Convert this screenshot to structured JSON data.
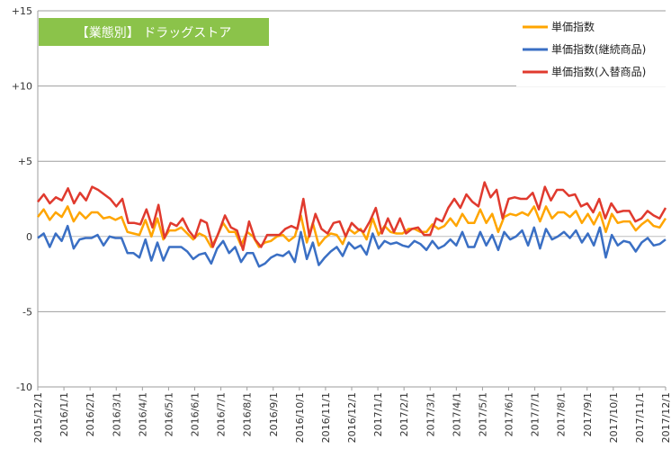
{
  "chart_data": {
    "type": "line",
    "title": "【業態別】 ドラッグストア",
    "title_bg": "#8BC34A",
    "xlabel": "",
    "ylabel": "",
    "ylim": [
      -10,
      15
    ],
    "y_ticks": [
      -10,
      -5,
      0,
      5,
      10,
      15
    ],
    "y_tick_labels": [
      "-10",
      "-5",
      "0",
      "+5",
      "+10",
      "+15"
    ],
    "x_tick_labels": [
      "2015/12/1",
      "2016/1/1",
      "2016/2/1",
      "2016/3/1",
      "2016/4/1",
      "2016/5/1",
      "2016/6/1",
      "2016/7/1",
      "2016/8/1",
      "2016/9/1",
      "2016/10/1",
      "2016/11/1",
      "2016/12/1",
      "2017/1/1",
      "2017/2/1",
      "2017/3/1",
      "2017/4/1",
      "2017/5/1",
      "2017/6/1",
      "2017/7/1",
      "2017/8/1",
      "2017/9/1",
      "2017/10/1",
      "2017/11/1",
      "2017/12/1"
    ],
    "grid": true,
    "legend_position": "top-right",
    "series": [
      {
        "name": "単価指数",
        "color": "#FFA500",
        "values": [
          1.3,
          1.8,
          1.1,
          1.6,
          1.3,
          2.0,
          1.0,
          1.6,
          1.2,
          1.6,
          1.6,
          1.2,
          1.3,
          1.1,
          1.3,
          0.3,
          0.2,
          0.1,
          1.1,
          0.0,
          1.2,
          -0.2,
          0.4,
          0.4,
          0.6,
          0.2,
          -0.2,
          0.2,
          0.0,
          -0.7,
          0.0,
          0.9,
          0.3,
          0.3,
          -0.6,
          0.3,
          0.0,
          -0.7,
          -0.4,
          -0.3,
          0.0,
          0.1,
          -0.3,
          0.0,
          1.4,
          -0.4,
          0.9,
          -0.6,
          -0.1,
          0.2,
          0.1,
          -0.5,
          0.5,
          0.2,
          0.5,
          -0.2,
          1.2,
          0.1,
          0.7,
          0.3,
          0.2,
          0.2,
          0.5,
          0.5,
          0.3,
          0.3,
          0.8,
          0.5,
          0.7,
          1.2,
          0.7,
          1.5,
          0.9,
          0.9,
          1.8,
          0.9,
          1.5,
          0.3,
          1.3,
          1.5,
          1.4,
          1.6,
          1.4,
          2.0,
          1.0,
          2.0,
          1.2,
          1.6,
          1.6,
          1.3,
          1.7,
          0.9,
          1.5,
          0.8,
          1.6,
          0.3,
          1.5,
          0.9,
          1.0,
          1.0,
          0.4,
          0.8,
          1.1,
          0.7,
          0.6,
          1.2
        ]
      },
      {
        "name": "単価指数(継続商品)",
        "color": "#3A6FC4",
        "values": [
          -0.1,
          0.2,
          -0.7,
          0.2,
          -0.3,
          0.7,
          -0.8,
          -0.2,
          -0.1,
          -0.1,
          0.1,
          -0.6,
          0.0,
          -0.1,
          -0.1,
          -1.1,
          -1.1,
          -1.4,
          -0.2,
          -1.6,
          -0.4,
          -1.6,
          -0.7,
          -0.7,
          -0.7,
          -1.0,
          -1.5,
          -1.2,
          -1.1,
          -1.8,
          -0.8,
          -0.3,
          -1.1,
          -0.7,
          -1.7,
          -1.1,
          -1.1,
          -2.0,
          -1.8,
          -1.4,
          -1.2,
          -1.3,
          -1.0,
          -1.7,
          0.3,
          -1.5,
          -0.4,
          -1.9,
          -1.4,
          -1.0,
          -0.7,
          -1.3,
          -0.4,
          -0.8,
          -0.6,
          -1.2,
          0.2,
          -0.8,
          -0.3,
          -0.5,
          -0.4,
          -0.6,
          -0.7,
          -0.3,
          -0.5,
          -0.9,
          -0.3,
          -0.8,
          -0.6,
          -0.2,
          -0.6,
          0.3,
          -0.7,
          -0.7,
          0.3,
          -0.6,
          0.1,
          -0.9,
          0.3,
          -0.2,
          0.0,
          0.4,
          -0.6,
          0.6,
          -0.8,
          0.5,
          -0.2,
          0.0,
          0.3,
          -0.1,
          0.4,
          -0.4,
          0.2,
          -0.6,
          0.6,
          -1.4,
          0.1,
          -0.6,
          -0.3,
          -0.4,
          -1.0,
          -0.4,
          -0.1,
          -0.6,
          -0.5,
          -0.2
        ]
      },
      {
        "name": "単価指数(入替商品)",
        "color": "#E03A2E",
        "values": [
          2.3,
          2.8,
          2.2,
          2.6,
          2.4,
          3.2,
          2.2,
          2.9,
          2.4,
          3.3,
          3.1,
          2.8,
          2.5,
          2.0,
          2.5,
          0.9,
          0.9,
          0.8,
          1.8,
          0.6,
          2.1,
          -0.1,
          0.9,
          0.7,
          1.2,
          0.4,
          -0.1,
          1.1,
          0.9,
          -0.7,
          0.3,
          1.4,
          0.6,
          0.4,
          -0.9,
          1.0,
          -0.2,
          -0.7,
          0.1,
          0.1,
          0.1,
          0.5,
          0.7,
          0.5,
          2.5,
          0.0,
          1.5,
          0.5,
          0.2,
          0.9,
          1.0,
          0.0,
          0.9,
          0.5,
          0.3,
          1.0,
          1.9,
          0.2,
          1.2,
          0.3,
          1.2,
          0.2,
          0.5,
          0.6,
          0.1,
          0.1,
          1.2,
          1.0,
          1.9,
          2.5,
          1.9,
          2.8,
          2.3,
          2.0,
          3.6,
          2.6,
          3.1,
          1.2,
          2.5,
          2.6,
          2.5,
          2.5,
          2.9,
          1.8,
          3.3,
          2.4,
          3.1,
          3.1,
          2.7,
          2.8,
          2.0,
          2.2,
          1.6,
          2.5,
          1.2,
          2.2,
          1.6,
          1.7,
          1.7,
          1.0,
          1.2,
          1.7,
          1.4,
          1.2,
          1.9
        ]
      }
    ]
  }
}
